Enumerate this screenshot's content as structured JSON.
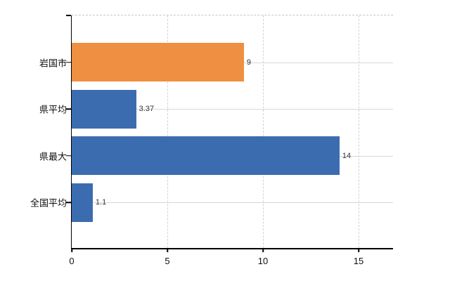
{
  "chart_data": {
    "type": "bar",
    "orientation": "horizontal",
    "categories": [
      "岩国市",
      "県平均",
      "県最大",
      "全国平均"
    ],
    "values": [
      9,
      3.37,
      14,
      1.1
    ],
    "value_labels": [
      "9",
      "3.37",
      "14",
      "1.1"
    ],
    "bar_colors": [
      "#ee8f41",
      "#3c6cb0",
      "#3c6cb0",
      "#3c6cb0"
    ],
    "x_ticks": [
      0,
      5,
      10,
      15
    ],
    "xlim": [
      0,
      16.8
    ],
    "grid": true,
    "legend": false
  }
}
